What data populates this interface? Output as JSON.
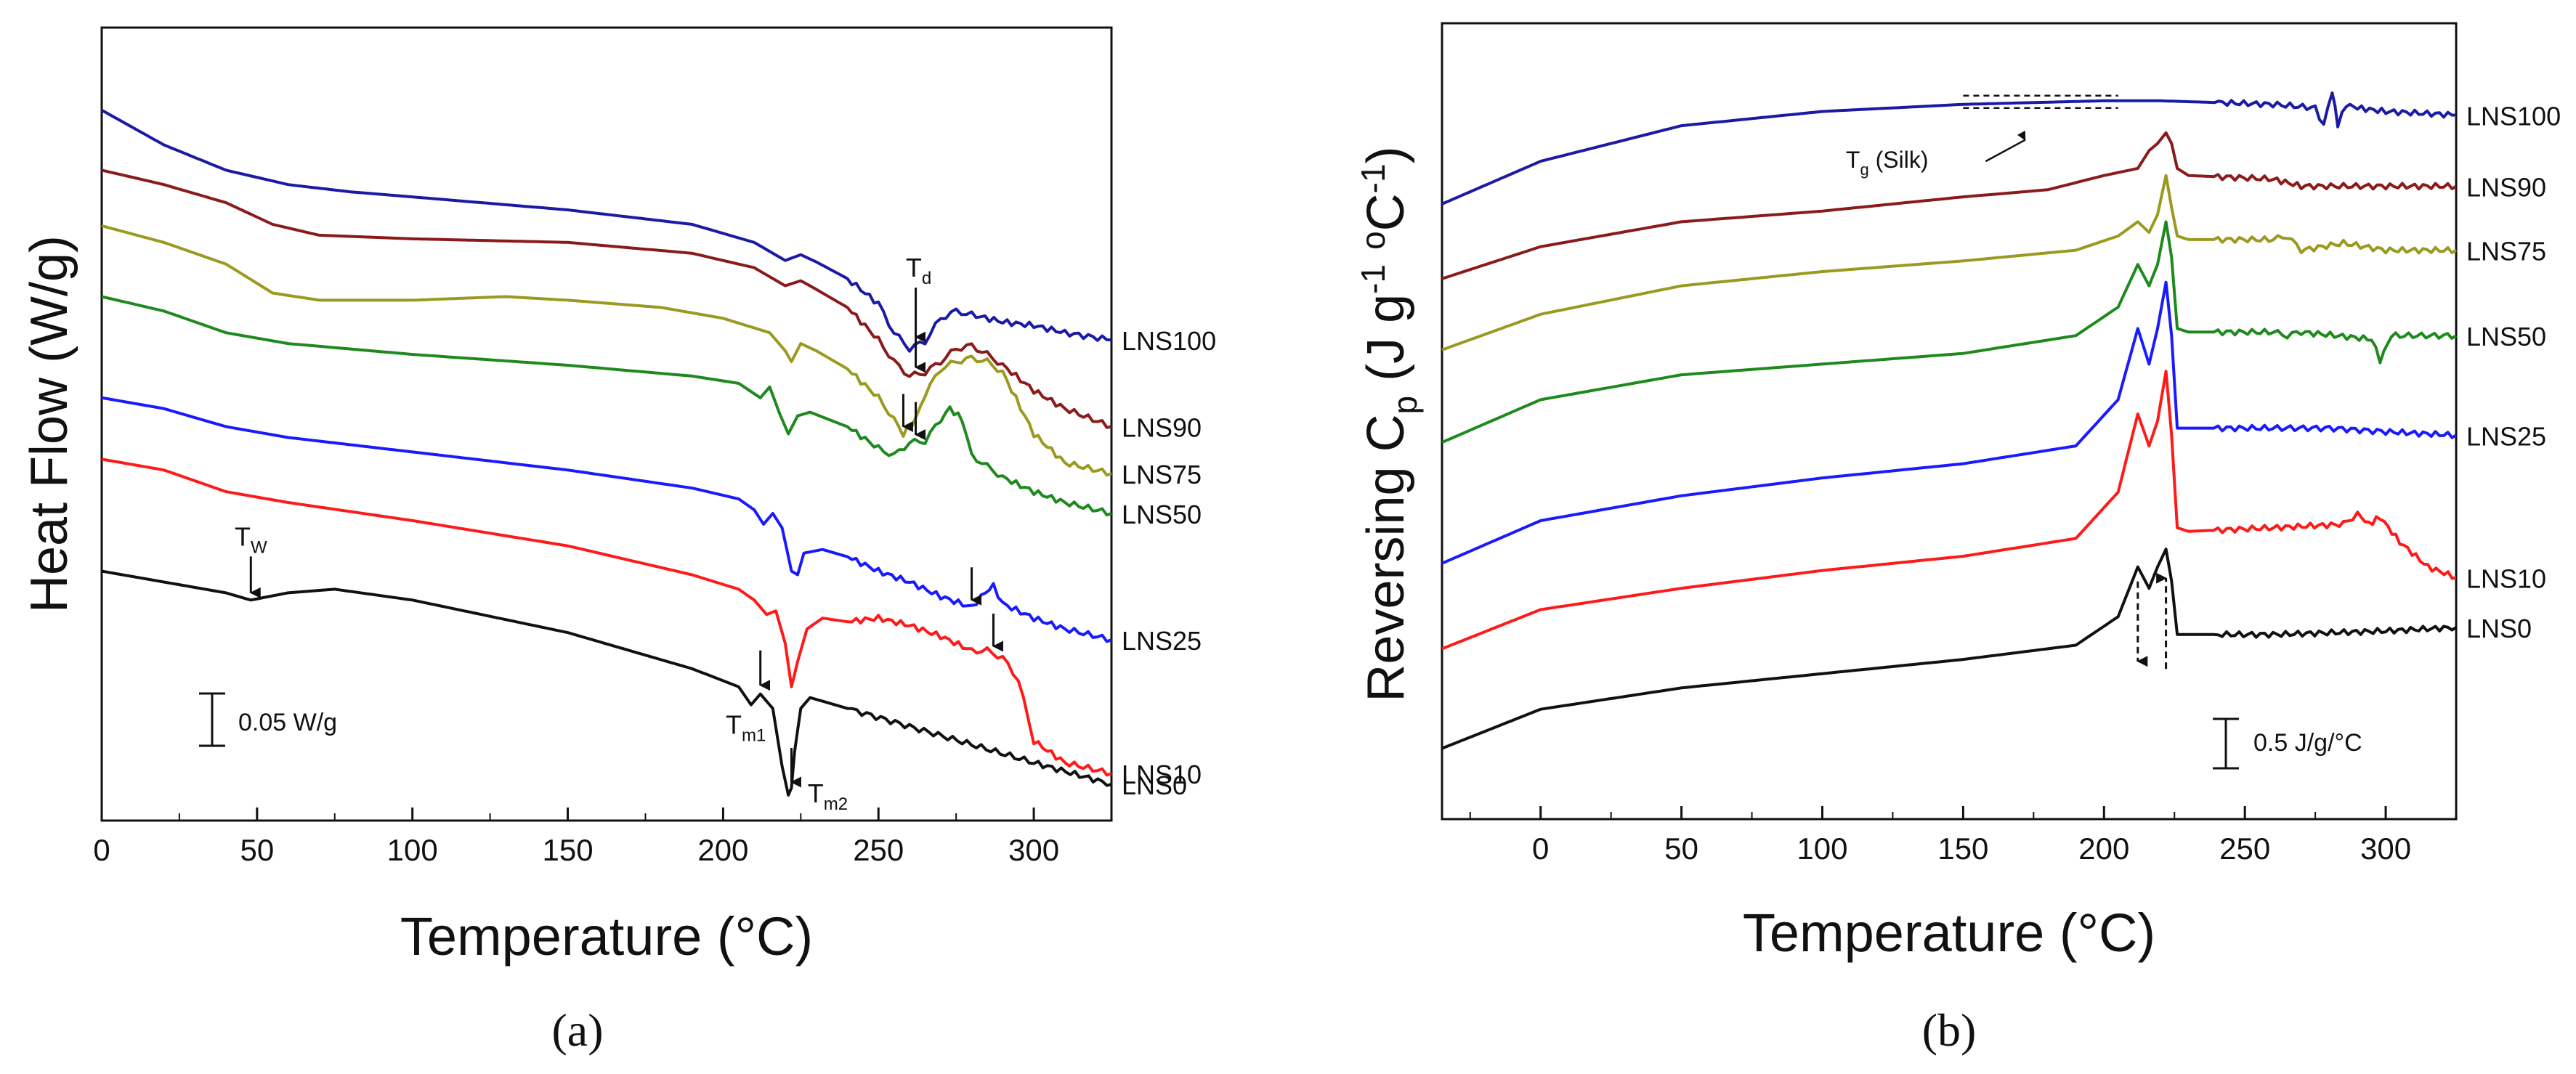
{
  "panels": [
    {
      "label": "(a)",
      "chart_data": {
        "type": "line",
        "title": "",
        "xlabel": "Temperature (°C)",
        "ylabel": "Heat Flow (W/g)",
        "xlim": [
          0,
          325
        ],
        "ylim": [
          0,
          1
        ],
        "xticks": [
          0,
          50,
          100,
          150,
          200,
          250,
          300
        ],
        "xtick_labels": [
          "0",
          "50",
          "100",
          "150",
          "200",
          "250",
          "300"
        ],
        "grid": false,
        "legend": "series labels at right end of each curve",
        "series": [
          {
            "name": "LNS100",
            "color": "#1a1aa6",
            "x": [
              0,
              20,
              40,
              60,
              80,
              100,
              150,
              190,
              210,
              220,
              225,
              230,
              240,
              250,
              255,
              260,
              265,
              270,
              275,
              280,
              290,
              300,
              310,
              325
            ],
            "y": [
              0.948,
              0.9,
              0.865,
              0.845,
              0.835,
              0.828,
              0.81,
              0.79,
              0.765,
              0.74,
              0.748,
              0.738,
              0.715,
              0.68,
              0.64,
              0.618,
              0.628,
              0.66,
              0.67,
              0.665,
              0.655,
              0.65,
              0.64,
              0.63
            ]
          },
          {
            "name": "LNS90",
            "color": "#8b1a1a",
            "x": [
              0,
              20,
              40,
              55,
              70,
              100,
              150,
              190,
              210,
              220,
              225,
              230,
              240,
              250,
              255,
              260,
              265,
              270,
              275,
              280,
              285,
              290,
              300,
              310,
              325
            ],
            "y": [
              0.865,
              0.845,
              0.82,
              0.79,
              0.775,
              0.77,
              0.765,
              0.75,
              0.73,
              0.705,
              0.712,
              0.7,
              0.675,
              0.63,
              0.6,
              0.58,
              0.585,
              0.6,
              0.618,
              0.622,
              0.61,
              0.595,
              0.56,
              0.535,
              0.51
            ]
          },
          {
            "name": "LNS75",
            "color": "#9a9a20",
            "x": [
              0,
              20,
              40,
              55,
              70,
              100,
              130,
              150,
              180,
              200,
              215,
              220,
              222,
              225,
              230,
              240,
              250,
              255,
              258,
              262,
              265,
              270,
              275,
              280,
              285,
              290,
              300,
              310,
              325
            ],
            "y": [
              0.788,
              0.765,
              0.735,
              0.695,
              0.685,
              0.685,
              0.69,
              0.685,
              0.675,
              0.66,
              0.64,
              0.615,
              0.6,
              0.625,
              0.615,
              0.59,
              0.55,
              0.52,
              0.5,
              0.52,
              0.555,
              0.59,
              0.6,
              0.605,
              0.6,
              0.585,
              0.5,
              0.46,
              0.445
            ]
          },
          {
            "name": "LNS50",
            "color": "#1e8a1e",
            "x": [
              0,
              20,
              40,
              60,
              100,
              150,
              190,
              205,
              212,
              215,
              218,
              221,
              224,
              228,
              240,
              250,
              255,
              260,
              265,
              270,
              273,
              277,
              280,
              285,
              290,
              300,
              310,
              325
            ],
            "y": [
              0.69,
              0.67,
              0.64,
              0.625,
              0.61,
              0.595,
              0.58,
              0.57,
              0.55,
              0.565,
              0.53,
              0.5,
              0.525,
              0.53,
              0.51,
              0.48,
              0.47,
              0.488,
              0.49,
              0.52,
              0.535,
              0.52,
              0.47,
              0.455,
              0.44,
              0.42,
              0.405,
              0.39
            ]
          },
          {
            "name": "LNS25",
            "color": "#1a1aff",
            "x": [
              0,
              20,
              40,
              60,
              100,
              150,
              190,
              205,
              210,
              213,
              216,
              219,
              222,
              224,
              226,
              232,
              240,
              250,
              260,
              270,
              280,
              283,
              287,
              290,
              300,
              310,
              325
            ],
            "y": [
              0.55,
              0.535,
              0.51,
              0.495,
              0.475,
              0.45,
              0.425,
              0.41,
              0.395,
              0.375,
              0.39,
              0.37,
              0.31,
              0.305,
              0.335,
              0.34,
              0.33,
              0.31,
              0.295,
              0.275,
              0.26,
              0.275,
              0.29,
              0.265,
              0.245,
              0.23,
              0.215
            ]
          },
          {
            "name": "LNS10",
            "color": "#ff1a1a",
            "x": [
              0,
              20,
              40,
              60,
              100,
              150,
              190,
              205,
              210,
              214,
              217,
              220,
              222,
              224,
              227,
              232,
              240,
              250,
              260,
              270,
              280,
              285,
              290,
              295,
              300,
              310,
              325
            ],
            "y": [
              0.465,
              0.45,
              0.42,
              0.405,
              0.38,
              0.345,
              0.305,
              0.285,
              0.27,
              0.25,
              0.255,
              0.21,
              0.15,
              0.185,
              0.23,
              0.245,
              0.24,
              0.245,
              0.235,
              0.22,
              0.2,
              0.2,
              0.19,
              0.16,
              0.075,
              0.045,
              0.03
            ]
          },
          {
            "name": "LNS0",
            "color": "#111111",
            "x": [
              0,
              20,
              40,
              48,
              60,
              75,
              100,
              150,
              190,
              205,
              209,
              212,
              216,
              219,
              221,
              222,
              223,
              225,
              228,
              232,
              240,
              260,
              280,
              300,
              325
            ],
            "y": [
              0.31,
              0.295,
              0.28,
              0.27,
              0.28,
              0.285,
              0.27,
              0.225,
              0.175,
              0.15,
              0.125,
              0.14,
              0.12,
              0.04,
              0.0,
              0.01,
              0.06,
              0.12,
              0.135,
              0.13,
              0.12,
              0.095,
              0.07,
              0.045,
              0.015
            ]
          }
        ],
        "annotations": [
          {
            "text": "T",
            "sub": "W",
            "x": 48
          },
          {
            "text": "T",
            "sub": "d",
            "x": 262
          },
          {
            "text": "T",
            "sub": "m1",
            "x": 212
          },
          {
            "text": "T",
            "sub": "m2",
            "x": 222
          },
          {
            "text": "",
            "sub": "",
            "x": 258
          },
          {
            "text": "",
            "sub": "",
            "x": 262
          },
          {
            "text": "",
            "sub": "",
            "x": 280
          },
          {
            "text": "",
            "sub": "",
            "x": 287
          }
        ],
        "scale_bar": {
          "label": "0.05 W/g"
        }
      }
    },
    {
      "label": "(b)",
      "chart_data": {
        "type": "line",
        "title": "",
        "xlabel": "Temperature (°C)",
        "ylabel": "Reversing Cp (J g-1 °C-1)",
        "xlim": [
          -35,
          325
        ],
        "ylim": [
          0,
          1
        ],
        "xticks": [
          0,
          50,
          100,
          150,
          200,
          250,
          300
        ],
        "xtick_labels": [
          "0",
          "50",
          "100",
          "150",
          "200",
          "250",
          "300"
        ],
        "grid": false,
        "legend": "series labels at right end of each curve",
        "series": [
          {
            "name": "LNS100",
            "color": "#1a1aa6",
            "x": [
              -35,
              0,
              50,
              100,
              150,
              200,
              220,
              260,
              275,
              278,
              281,
              283,
              286,
              290,
              300,
              325
            ],
            "y": [
              0.795,
              0.855,
              0.905,
              0.925,
              0.935,
              0.94,
              0.94,
              0.935,
              0.93,
              0.905,
              0.955,
              0.905,
              0.935,
              0.93,
              0.925,
              0.92
            ]
          },
          {
            "name": "LNS90",
            "color": "#8b1a1a",
            "x": [
              -35,
              0,
              50,
              100,
              150,
              180,
              200,
              212,
              216,
              219,
              222,
              224,
              226,
              230,
              260,
              270,
              285,
              300,
              325
            ],
            "y": [
              0.69,
              0.735,
              0.77,
              0.785,
              0.805,
              0.815,
              0.835,
              0.845,
              0.87,
              0.88,
              0.895,
              0.88,
              0.845,
              0.835,
              0.83,
              0.82,
              0.82,
              0.82,
              0.82
            ]
          },
          {
            "name": "LNS75",
            "color": "#9a9a20",
            "x": [
              -35,
              0,
              50,
              100,
              150,
              190,
              205,
              212,
              216,
              219,
              222,
              224,
              226,
              230,
              260,
              265,
              270,
              285,
              300,
              325
            ],
            "y": [
              0.59,
              0.64,
              0.68,
              0.7,
              0.715,
              0.73,
              0.75,
              0.77,
              0.755,
              0.78,
              0.835,
              0.79,
              0.75,
              0.745,
              0.745,
              0.75,
              0.73,
              0.74,
              0.73,
              0.73
            ]
          },
          {
            "name": "LNS50",
            "color": "#1e8a1e",
            "x": [
              -35,
              0,
              50,
              100,
              150,
              190,
              205,
              212,
              216,
              219,
              222,
              224,
              226,
              230,
              260,
              265,
              270,
              295,
              298,
              302,
              325
            ],
            "y": [
              0.46,
              0.52,
              0.555,
              0.57,
              0.585,
              0.61,
              0.65,
              0.71,
              0.68,
              0.71,
              0.77,
              0.72,
              0.62,
              0.615,
              0.615,
              0.61,
              0.615,
              0.605,
              0.575,
              0.61,
              0.61
            ]
          },
          {
            "name": "LNS25",
            "color": "#1a1aff",
            "x": [
              -35,
              0,
              50,
              100,
              150,
              190,
              205,
              212,
              216,
              219,
              222,
              224,
              226,
              230,
              260,
              280,
              300,
              325
            ],
            "y": [
              0.29,
              0.35,
              0.385,
              0.41,
              0.43,
              0.455,
              0.52,
              0.62,
              0.57,
              0.62,
              0.685,
              0.61,
              0.48,
              0.48,
              0.48,
              0.48,
              0.475,
              0.47
            ]
          },
          {
            "name": "LNS10",
            "color": "#ff1a1a",
            "x": [
              -35,
              0,
              50,
              100,
              150,
              190,
              205,
              212,
              216,
              219,
              222,
              224,
              226,
              230,
              260,
              285,
              290,
              294,
              298,
              305,
              315,
              325
            ],
            "y": [
              0.17,
              0.225,
              0.255,
              0.28,
              0.3,
              0.325,
              0.39,
              0.5,
              0.455,
              0.49,
              0.56,
              0.47,
              0.34,
              0.335,
              0.34,
              0.345,
              0.36,
              0.345,
              0.355,
              0.32,
              0.285,
              0.27
            ]
          },
          {
            "name": "LNS0",
            "color": "#111111",
            "x": [
              -35,
              0,
              50,
              100,
              150,
              190,
              205,
              212,
              216,
              219,
              222,
              224,
              226,
              230,
              260,
              300,
              325
            ],
            "y": [
              0.03,
              0.085,
              0.115,
              0.135,
              0.155,
              0.175,
              0.215,
              0.285,
              0.255,
              0.285,
              0.31,
              0.265,
              0.19,
              0.19,
              0.19,
              0.195,
              0.2
            ]
          }
        ],
        "annotations": [
          {
            "text": "T",
            "sub": "g",
            "extra": "(Silk)"
          }
        ],
        "scale_bar": {
          "label": "0.5 J/g/°C"
        }
      }
    }
  ]
}
